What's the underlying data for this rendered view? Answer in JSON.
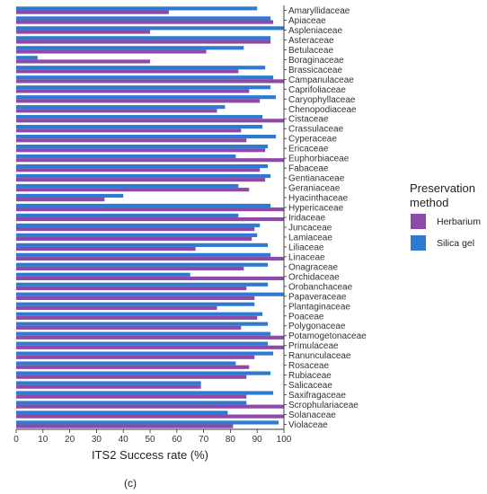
{
  "chart_data": {
    "type": "bar",
    "orientation": "horizontal",
    "categories": [
      "Amaryllidaceae",
      "Apiaceae",
      "Aspleniaceae",
      "Asteraceae",
      "Betulaceae",
      "Boraginaceae",
      "Brassicaceae",
      "Campanulaceae",
      "Caprifoliaceae",
      "Caryophyllaceae",
      "Chenopodiaceae",
      "Cistaceae",
      "Crassulaceae",
      "Cyperaceae",
      "Ericaceae",
      "Euphorbiaceae",
      "Fabaceae",
      "Gentianaceae",
      "Geraniaceae",
      "Hyacinthaceae",
      "Hypericaceae",
      "Iridaceae",
      "Juncaceae",
      "Lamiaceae",
      "Liliaceae",
      "Linaceae",
      "Onagraceae",
      "Orchidaceae",
      "Orobanchaceae",
      "Papaveraceae",
      "Plantaginaceae",
      "Poaceae",
      "Polygonaceae",
      "Potamogetonaceae",
      "Primulaceae",
      "Ranunculaceae",
      "Rosaceae",
      "Rubiaceae",
      "Salicaceae",
      "Saxifragaceae",
      "Scrophulariaceae",
      "Solanaceae",
      "Violaceae"
    ],
    "series": [
      {
        "name": "Silica gel",
        "color": "#2e7ad1",
        "values": [
          90,
          95,
          100,
          95,
          85,
          8,
          93,
          96,
          95,
          97,
          78,
          92,
          92,
          97,
          94,
          82,
          94,
          95,
          83,
          40,
          95,
          83,
          91,
          90,
          94,
          95,
          94,
          65,
          94,
          100,
          89,
          92,
          94,
          95,
          94,
          96,
          82,
          95,
          69,
          96,
          86,
          79,
          98
        ]
      },
      {
        "name": "Herbarium",
        "color": "#8e4aa8",
        "values": [
          57,
          96,
          50,
          95,
          71,
          50,
          83,
          100,
          87,
          91,
          75,
          100,
          84,
          86,
          93,
          100,
          91,
          93,
          87,
          33,
          100,
          100,
          89,
          88,
          67,
          100,
          85,
          100,
          86,
          89,
          75,
          90,
          84,
          100,
          100,
          89,
          87,
          86,
          69,
          86,
          100,
          100,
          81
        ]
      }
    ],
    "xlabel": "ITS2 Success rate (%)",
    "ylabel": "",
    "xlim": [
      0,
      100
    ],
    "xticks": [
      0,
      10,
      20,
      30,
      40,
      50,
      60,
      70,
      80,
      90,
      100
    ],
    "grid": false,
    "legend": {
      "title": "Preservation method",
      "entries": [
        "Herbarium",
        "Silica gel"
      ],
      "position": "right"
    }
  },
  "caption": "(c)"
}
